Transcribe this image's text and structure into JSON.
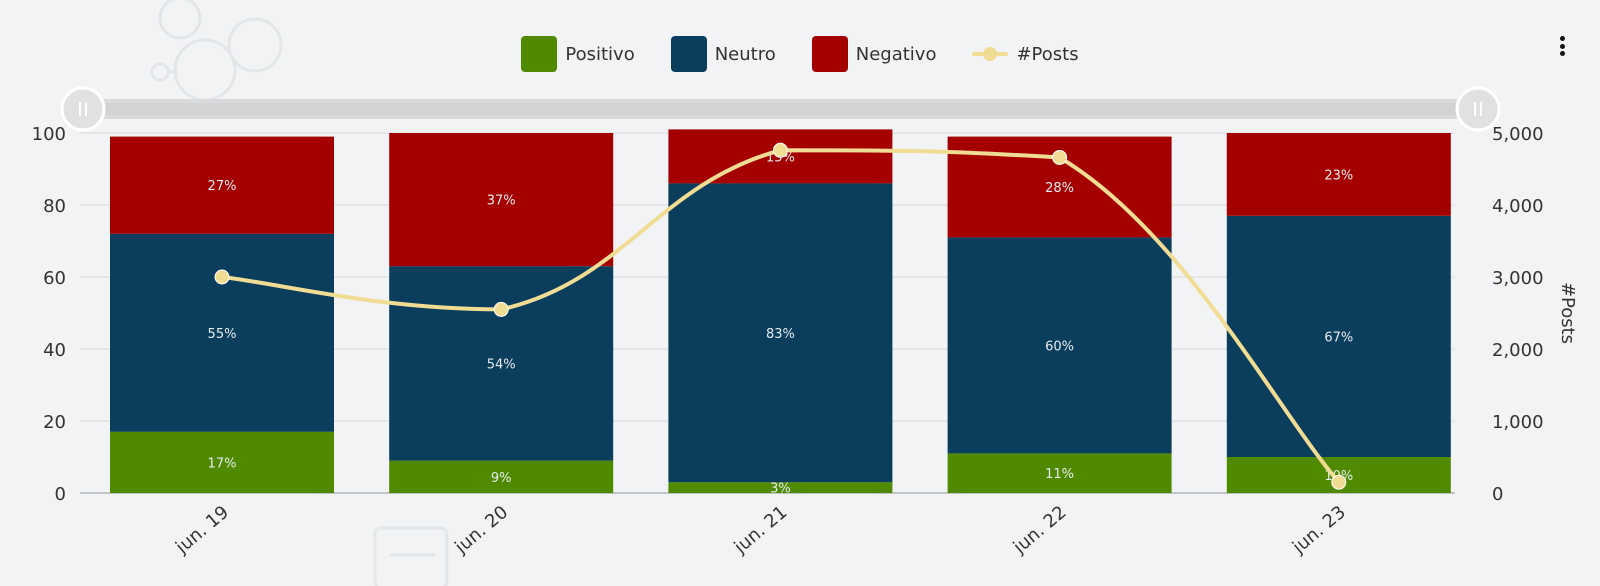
{
  "legend": {
    "items": [
      {
        "label": "Positivo",
        "color": "#4f8a00"
      },
      {
        "label": "Neutro",
        "color": "#0b3d5c"
      },
      {
        "label": "Negativo",
        "color": "#a40000"
      },
      {
        "label": "#Posts",
        "color": "#f1dc94"
      }
    ]
  },
  "menu_icon": "more-vertical-icon",
  "chart_data": {
    "type": "bar",
    "stacked": true,
    "categories": [
      "jun. 19",
      "jun. 20",
      "jun. 21",
      "jun. 22",
      "jun. 23"
    ],
    "series": [
      {
        "name": "Positivo",
        "type": "bar",
        "color": "#4f8a00",
        "values": [
          17,
          9,
          3,
          11,
          10
        ],
        "labels": [
          "17%",
          "9%",
          "3%",
          "11%",
          "10%"
        ]
      },
      {
        "name": "Neutro",
        "type": "bar",
        "color": "#0b3d5c",
        "values": [
          55,
          54,
          83,
          60,
          67
        ],
        "labels": [
          "55%",
          "54%",
          "83%",
          "60%",
          "67%"
        ]
      },
      {
        "name": "Negativo",
        "type": "bar",
        "color": "#a40000",
        "values": [
          27,
          37,
          15,
          28,
          23
        ],
        "labels": [
          "27%",
          "37%",
          "15%",
          "28%",
          "23%"
        ]
      },
      {
        "name": "#Posts",
        "type": "line",
        "axis": "right",
        "color": "#f1dc94",
        "values": [
          3000,
          2550,
          4760,
          4660,
          150
        ]
      }
    ],
    "yaxis_left": {
      "range": [
        0,
        100
      ],
      "ticks": [
        "0",
        "20",
        "40",
        "60",
        "80",
        "100"
      ]
    },
    "yaxis_right": {
      "range": [
        0,
        5000
      ],
      "ticks": [
        "0",
        "1,000",
        "2,000",
        "3,000",
        "4,000",
        "5,000"
      ],
      "label": "#Posts"
    },
    "grid": true,
    "legend_position": "top",
    "navigator": true
  }
}
